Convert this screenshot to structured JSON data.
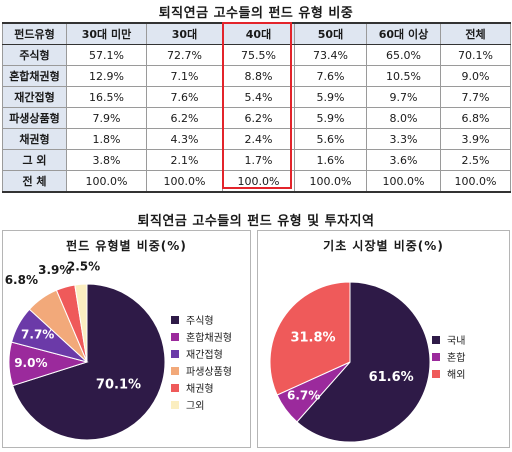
{
  "table": {
    "title": "퇴직연금 고수들의 펀드 유형 비중",
    "headers": [
      "펀드유형",
      "30대 미만",
      "30대",
      "40대",
      "50대",
      "60대 이상",
      "전체"
    ],
    "rows": [
      {
        "label": "주식형",
        "values": [
          "57.1%",
          "72.7%",
          "75.5%",
          "73.4%",
          "65.0%",
          "70.1%"
        ]
      },
      {
        "label": "혼합채권형",
        "values": [
          "12.9%",
          "7.1%",
          "8.8%",
          "7.6%",
          "10.5%",
          "9.0%"
        ]
      },
      {
        "label": "재간접형",
        "values": [
          "16.5%",
          "7.6%",
          "5.4%",
          "5.9%",
          "9.7%",
          "7.7%"
        ]
      },
      {
        "label": "파생상품형",
        "values": [
          "7.9%",
          "6.2%",
          "6.2%",
          "5.9%",
          "8.0%",
          "6.8%"
        ]
      },
      {
        "label": "채권형",
        "values": [
          "1.8%",
          "4.3%",
          "2.4%",
          "5.6%",
          "3.3%",
          "3.9%"
        ]
      },
      {
        "label": "그 외",
        "values": [
          "3.8%",
          "2.1%",
          "1.7%",
          "1.6%",
          "3.6%",
          "2.5%"
        ]
      },
      {
        "label": "전 체",
        "values": [
          "100.0%",
          "100.0%",
          "100.0%",
          "100.0%",
          "100.0%",
          "100.0%"
        ]
      }
    ]
  },
  "section_title": "퇴직연금 고수들의 펀드 유형 및 투자지역",
  "chart_data": [
    {
      "type": "pie",
      "title": "펀드 유형별 비중(%)",
      "categories": [
        "주식형",
        "혼합채권형",
        "재간접형",
        "파생상품형",
        "채권형",
        "그외"
      ],
      "values": [
        70.1,
        9.0,
        7.7,
        6.8,
        3.9,
        2.5
      ],
      "labels": [
        "70.1%",
        "9.0%",
        "7.7%",
        "6.8%",
        "3.9%",
        "2.5%"
      ],
      "colors": [
        "#2e1a47",
        "#9b2a9c",
        "#6b3aa8",
        "#f2a97a",
        "#ef5a5a",
        "#fbeec0"
      ],
      "legend_position": "right"
    },
    {
      "type": "pie",
      "title": "기초 시장별 비중(%)",
      "categories": [
        "국내",
        "혼합",
        "해외"
      ],
      "values": [
        61.6,
        6.7,
        31.8
      ],
      "labels": [
        "61.6%",
        "6.7%",
        "31.8%"
      ],
      "colors": [
        "#2e1a47",
        "#9b2a9c",
        "#ef5a5a"
      ],
      "legend_position": "right"
    }
  ]
}
